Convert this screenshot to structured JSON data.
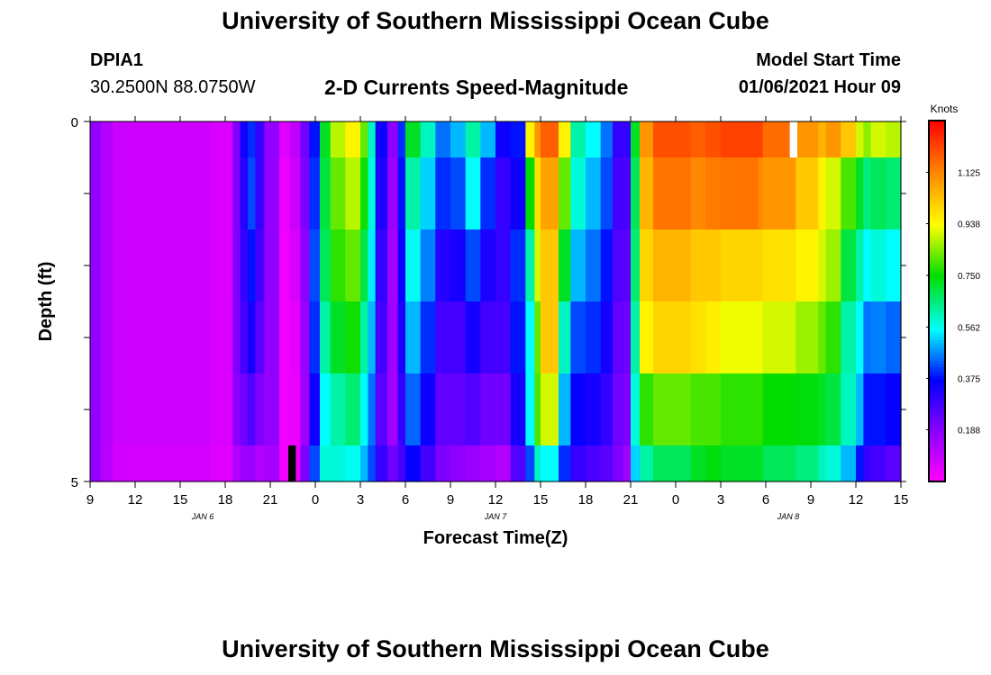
{
  "header": {
    "title": "University of Southern Mississippi Ocean Cube",
    "station": "DPIA1",
    "coords": "30.2500N 88.0750W",
    "subtitle": "2-D Currents Speed-Magnitude",
    "model_start_label": "Model Start Time",
    "model_start_value": "01/06/2021 Hour 09"
  },
  "footer": {
    "title": "University of Southern Mississippi Ocean Cube"
  },
  "chart_data": {
    "type": "heatmap",
    "xlabel": "Forecast Time(Z)",
    "ylabel": "Depth (ft)",
    "colorbar_label": "Knots",
    "colorbar_ticks": [
      "0.188",
      "0.375",
      "0.562",
      "0.750",
      "0.938",
      "1.125"
    ],
    "colorbar_range": [
      0,
      1.313
    ],
    "x_tick_labels": [
      "9",
      "12",
      "15",
      "18",
      "21",
      "0",
      "3",
      "6",
      "9",
      "12",
      "15",
      "18",
      "21",
      "0",
      "3",
      "6",
      "9",
      "12",
      "15"
    ],
    "date_labels": [
      "JAN 6",
      "JAN 7",
      "JAN 8"
    ],
    "y_tick_labels": [
      "0",
      "5"
    ],
    "xlim_hours": [
      9,
      63
    ],
    "ylim": [
      0,
      5
    ],
    "depth_bins": [
      0,
      0.5,
      1.5,
      2.5,
      3.5,
      4.5,
      5
    ],
    "columns": [
      {
        "s": 9,
        "e": 9.7,
        "v": [
          0.17,
          0.17,
          0.17,
          0.17,
          0.17,
          0.17
        ]
      },
      {
        "s": 9.7,
        "e": 10.5,
        "v": [
          0.12,
          0.12,
          0.12,
          0.12,
          0.12,
          0.11
        ]
      },
      {
        "s": 10.5,
        "e": 17,
        "v": [
          0.08,
          0.08,
          0.08,
          0.08,
          0.08,
          0.07
        ]
      },
      {
        "s": 17,
        "e": 18.5,
        "v": [
          0.06,
          0.06,
          0.06,
          0.06,
          0.06,
          0.05
        ]
      },
      {
        "s": 18.5,
        "e": 19,
        "v": [
          0.2,
          0.2,
          0.2,
          0.2,
          0.18,
          0.12
        ]
      },
      {
        "s": 19,
        "e": 19.5,
        "v": [
          0.35,
          0.32,
          0.3,
          0.28,
          0.22,
          0.15
        ]
      },
      {
        "s": 19.5,
        "e": 20,
        "v": [
          0.4,
          0.42,
          0.38,
          0.34,
          0.26,
          0.16
        ]
      },
      {
        "s": 20,
        "e": 20.6,
        "v": [
          0.3,
          0.3,
          0.28,
          0.25,
          0.2,
          0.12
        ]
      },
      {
        "s": 20.6,
        "e": 21.6,
        "v": [
          0.17,
          0.17,
          0.17,
          0.17,
          0.17,
          0.14
        ]
      },
      {
        "s": 21.6,
        "e": 22.3,
        "v": [
          0.05,
          0.03,
          0.02,
          0.02,
          0.02,
          0.02
        ]
      },
      {
        "s": 22.3,
        "e": 23,
        "v": [
          0.1,
          0.08,
          0.06,
          0.04,
          0.03,
          0.03
        ]
      },
      {
        "s": 23,
        "e": 23.6,
        "v": [
          0.22,
          0.2,
          0.18,
          0.16,
          0.15,
          0.2
        ]
      },
      {
        "s": 23.6,
        "e": 24.3,
        "v": [
          0.38,
          0.4,
          0.42,
          0.4,
          0.35,
          0.42
        ]
      },
      {
        "s": 24.3,
        "e": 25,
        "v": [
          0.72,
          0.7,
          0.68,
          0.62,
          0.55,
          0.58
        ]
      },
      {
        "s": 25,
        "e": 26,
        "v": [
          0.88,
          0.82,
          0.78,
          0.72,
          0.62,
          0.58
        ]
      },
      {
        "s": 26,
        "e": 27,
        "v": [
          0.95,
          0.88,
          0.82,
          0.76,
          0.66,
          0.56
        ]
      },
      {
        "s": 27,
        "e": 27.5,
        "v": [
          0.82,
          0.76,
          0.7,
          0.62,
          0.55,
          0.5
        ]
      },
      {
        "s": 27.5,
        "e": 28,
        "v": [
          0.6,
          0.58,
          0.54,
          0.5,
          0.45,
          0.42
        ]
      },
      {
        "s": 28,
        "e": 28.8,
        "v": [
          0.35,
          0.33,
          0.3,
          0.28,
          0.25,
          0.3
        ]
      },
      {
        "s": 28.8,
        "e": 29.5,
        "v": [
          0.18,
          0.16,
          0.15,
          0.15,
          0.15,
          0.22
        ]
      },
      {
        "s": 29.5,
        "e": 30,
        "v": [
          0.4,
          0.38,
          0.35,
          0.33,
          0.3,
          0.28
        ]
      },
      {
        "s": 30,
        "e": 31,
        "v": [
          0.72,
          0.62,
          0.56,
          0.5,
          0.44,
          0.36
        ]
      },
      {
        "s": 31,
        "e": 32,
        "v": [
          0.6,
          0.52,
          0.46,
          0.4,
          0.35,
          0.28
        ]
      },
      {
        "s": 32,
        "e": 33,
        "v": [
          0.45,
          0.4,
          0.32,
          0.28,
          0.24,
          0.2
        ]
      },
      {
        "s": 33,
        "e": 34,
        "v": [
          0.5,
          0.42,
          0.34,
          0.28,
          0.24,
          0.18
        ]
      },
      {
        "s": 34,
        "e": 35,
        "v": [
          0.62,
          0.55,
          0.42,
          0.34,
          0.26,
          0.16
        ]
      },
      {
        "s": 35,
        "e": 36,
        "v": [
          0.5,
          0.4,
          0.33,
          0.28,
          0.22,
          0.14
        ]
      },
      {
        "s": 36,
        "e": 37,
        "v": [
          0.35,
          0.3,
          0.3,
          0.28,
          0.22,
          0.12
        ]
      },
      {
        "s": 37,
        "e": 38,
        "v": [
          0.38,
          0.35,
          0.4,
          0.38,
          0.34,
          0.26
        ]
      },
      {
        "s": 38,
        "e": 38.6,
        "v": [
          0.95,
          0.75,
          0.62,
          0.55,
          0.55,
          0.42
        ]
      },
      {
        "s": 38.6,
        "e": 39,
        "v": [
          1.1,
          0.98,
          0.9,
          0.82,
          0.8,
          0.6
        ]
      },
      {
        "s": 39,
        "e": 40.2,
        "v": [
          1.18,
          1.08,
          1.02,
          1.02,
          0.9,
          0.55
        ]
      },
      {
        "s": 40.2,
        "e": 41,
        "v": [
          0.95,
          0.82,
          0.72,
          0.6,
          0.5,
          0.4
        ]
      },
      {
        "s": 41,
        "e": 42,
        "v": [
          0.62,
          0.58,
          0.5,
          0.42,
          0.36,
          0.3
        ]
      },
      {
        "s": 42,
        "e": 43,
        "v": [
          0.55,
          0.5,
          0.45,
          0.4,
          0.34,
          0.27
        ]
      },
      {
        "s": 43,
        "e": 43.8,
        "v": [
          0.45,
          0.42,
          0.38,
          0.34,
          0.3,
          0.25
        ]
      },
      {
        "s": 43.8,
        "e": 44.5,
        "v": [
          0.3,
          0.28,
          0.26,
          0.24,
          0.22,
          0.2
        ]
      },
      {
        "s": 44.5,
        "e": 45,
        "v": [
          0.3,
          0.27,
          0.25,
          0.22,
          0.2,
          0.15
        ]
      },
      {
        "s": 45,
        "e": 45.6,
        "v": [
          0.72,
          0.68,
          0.66,
          0.62,
          0.58,
          0.52
        ]
      },
      {
        "s": 45.6,
        "e": 46.5,
        "v": [
          1.1,
          1.05,
          1.0,
          0.95,
          0.78,
          0.62
        ]
      },
      {
        "s": 46.5,
        "e": 49,
        "v": [
          1.2,
          1.15,
          1.05,
          1.0,
          0.82,
          0.68
        ]
      },
      {
        "s": 49,
        "e": 50,
        "v": [
          1.18,
          1.12,
          1.02,
          0.98,
          0.8,
          0.72
        ]
      },
      {
        "s": 50,
        "e": 51,
        "v": [
          1.2,
          1.14,
          1.02,
          0.96,
          0.8,
          0.74
        ]
      },
      {
        "s": 51,
        "e": 53.5,
        "v": [
          1.22,
          1.15,
          1.0,
          0.92,
          0.78,
          0.72
        ]
      },
      {
        "s": 53.5,
        "e": 53.8,
        "v": [
          1.22,
          1.12,
          1.0,
          0.92,
          0.78,
          0.72
        ]
      },
      {
        "s": 53.8,
        "e": 56,
        "v": [
          1.16,
          1.1,
          0.98,
          0.9,
          0.75,
          0.68
        ]
      },
      {
        "s": 56,
        "e": 57.5,
        "v": [
          1.1,
          1.02,
          0.95,
          0.86,
          0.74,
          0.65
        ]
      },
      {
        "s": 57.5,
        "e": 58,
        "v": [
          1.05,
          0.95,
          0.9,
          0.82,
          0.72,
          0.6
        ]
      },
      {
        "s": 58,
        "e": 59,
        "v": [
          1.1,
          0.9,
          0.86,
          0.78,
          0.7,
          0.58
        ]
      },
      {
        "s": 59,
        "e": 60,
        "v": [
          1.02,
          0.8,
          0.7,
          0.62,
          0.6,
          0.5
        ]
      },
      {
        "s": 60,
        "e": 60.5,
        "v": [
          0.9,
          0.72,
          0.62,
          0.55,
          0.5,
          0.38
        ]
      },
      {
        "s": 60.5,
        "e": 61,
        "v": [
          0.85,
          0.65,
          0.55,
          0.45,
          0.38,
          0.3
        ]
      },
      {
        "s": 61,
        "e": 62,
        "v": [
          0.9,
          0.68,
          0.58,
          0.46,
          0.38,
          0.28
        ]
      },
      {
        "s": 62,
        "e": 63,
        "v": [
          0.88,
          0.66,
          0.55,
          0.44,
          0.36,
          0.25
        ]
      }
    ],
    "missing": [
      {
        "x": [
          55.6,
          56.1
        ],
        "d": [
          0,
          0.5
        ],
        "color": "#ffffff"
      },
      {
        "x": [
          22.2,
          22.7
        ],
        "d": [
          4.5,
          5
        ],
        "color": "#000000"
      }
    ]
  }
}
